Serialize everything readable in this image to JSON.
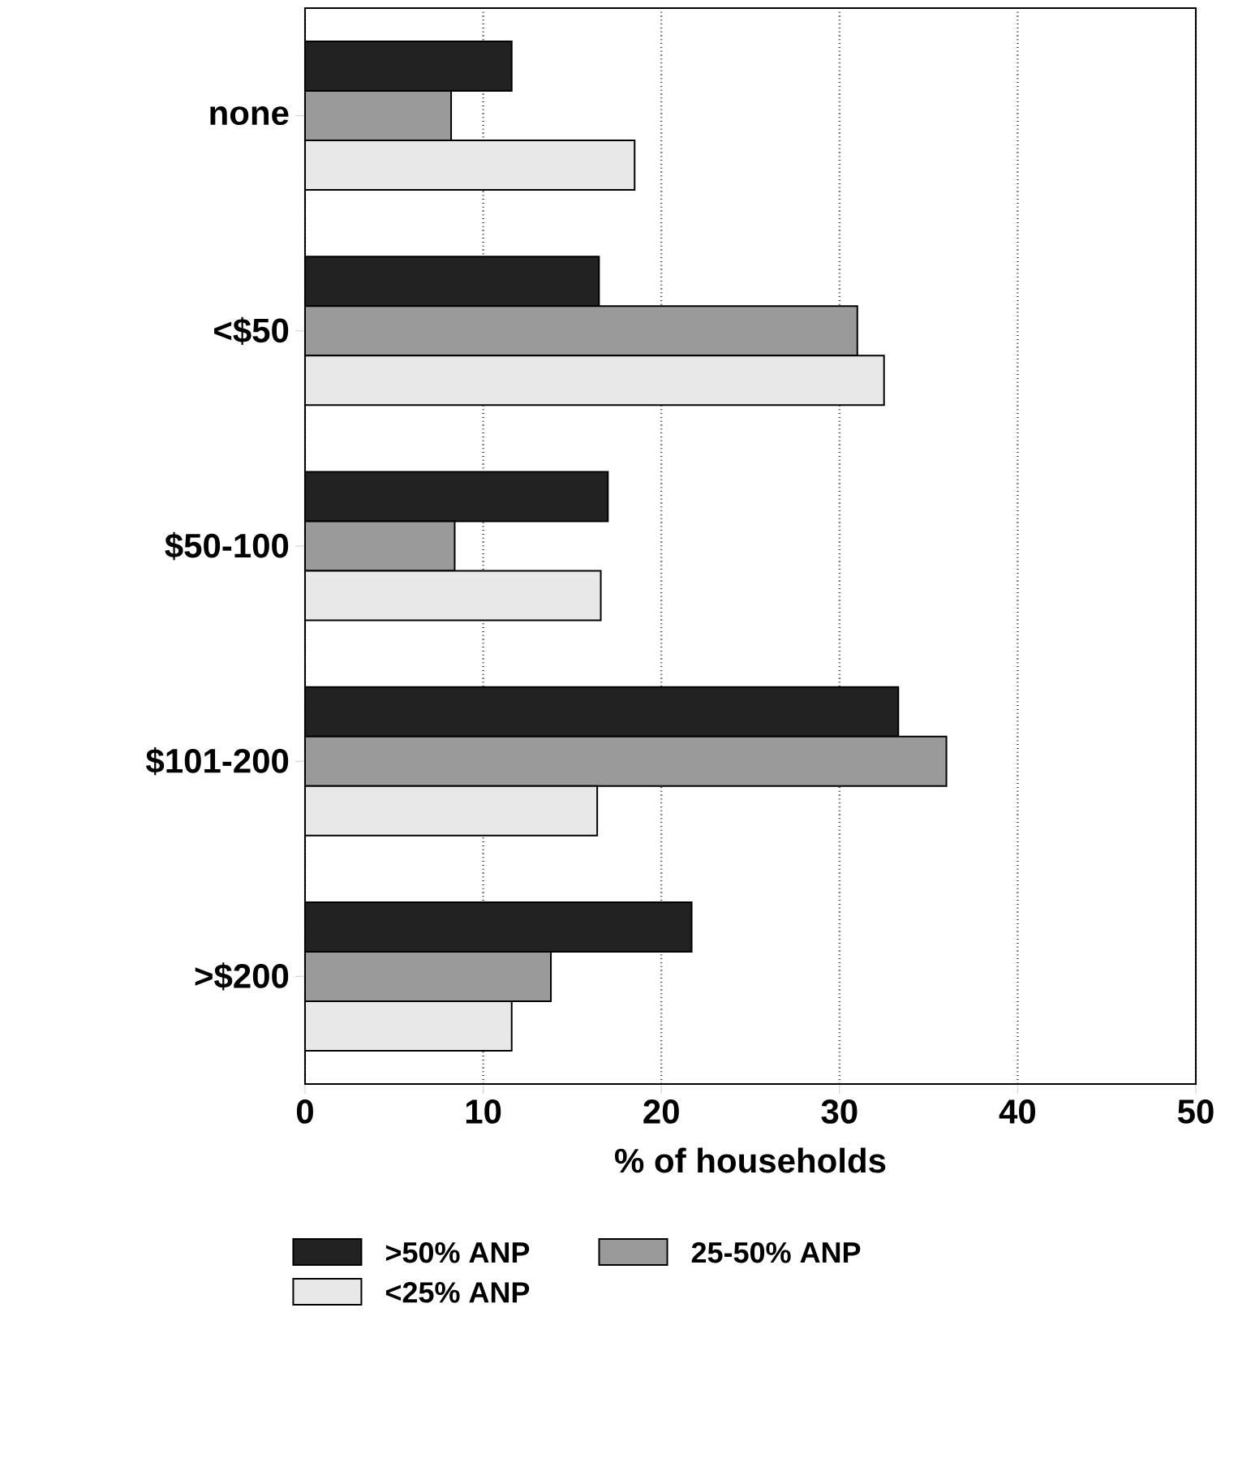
{
  "chart_data": {
    "type": "bar",
    "orientation": "horizontal",
    "xlabel": "% of households",
    "categories": [
      "none",
      "<$50",
      "$50-100",
      "$101-200",
      ">$200"
    ],
    "series": [
      {
        "name": ">50% ANP",
        "color": "#222222",
        "values": [
          11.6,
          16.5,
          17.0,
          33.3,
          21.7
        ]
      },
      {
        "name": "25-50% ANP",
        "color": "#9a9a9a",
        "values": [
          8.2,
          31,
          8.4,
          36.0,
          13.8
        ]
      },
      {
        "name": "<25% ANP",
        "color": "#e8e8e8",
        "values": [
          18.5,
          32.5,
          16.6,
          16.4,
          11.6
        ]
      }
    ],
    "xlim": [
      0,
      50
    ],
    "xticks": [
      0,
      10,
      20,
      30,
      40,
      50
    ],
    "grid": "x",
    "legend": "bottom"
  }
}
